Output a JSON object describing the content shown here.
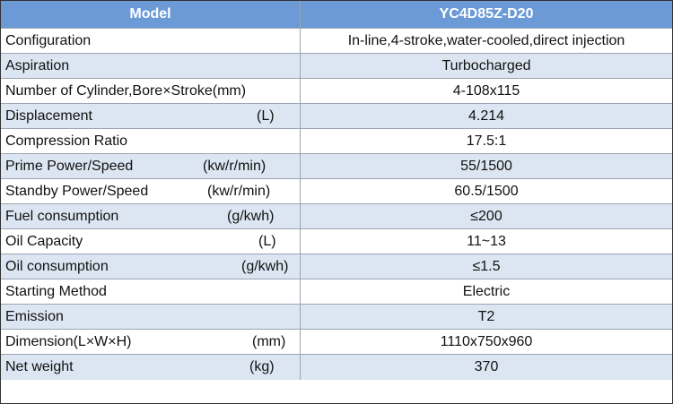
{
  "table": {
    "header": [
      "Model",
      "YC4D85Z-D20"
    ],
    "rows": [
      {
        "label": "Configuration",
        "value": "In-line,4-stroke,water-cooled,direct injection"
      },
      {
        "label": "Aspiration",
        "value": "Turbocharged"
      },
      {
        "label": "Number of Cylinder,Bore×Stroke(mm)",
        "value": "4-108x115"
      },
      {
        "label": "Displacement",
        "unit": "(L)",
        "value": "4.214"
      },
      {
        "label": "Compression Ratio",
        "value": "17.5:1"
      },
      {
        "label": "Prime Power/Speed",
        "unit": "(kw/r/min)",
        "value": "55/1500"
      },
      {
        "label": "Standby Power/Speed",
        "unit": "(kw/r/min)",
        "value": "60.5/1500"
      },
      {
        "label": "Fuel consumption",
        "unit": "(g/kwh)",
        "value": "≤200"
      },
      {
        "label": "Oil Capacity",
        "unit": "(L)",
        "value": "11~13"
      },
      {
        "label": "Oil consumption",
        "unit": "(g/kwh)",
        "value": "≤1.5"
      },
      {
        "label": "Starting Method",
        "value": "Electric"
      },
      {
        "label": "Emission",
        "value": "T2"
      },
      {
        "label": "Dimension(L×W×H)",
        "unit": "(mm)",
        "value": "1110x750x960"
      },
      {
        "label": "Net weight",
        "unit": "(kg)",
        "value": "370"
      }
    ]
  }
}
